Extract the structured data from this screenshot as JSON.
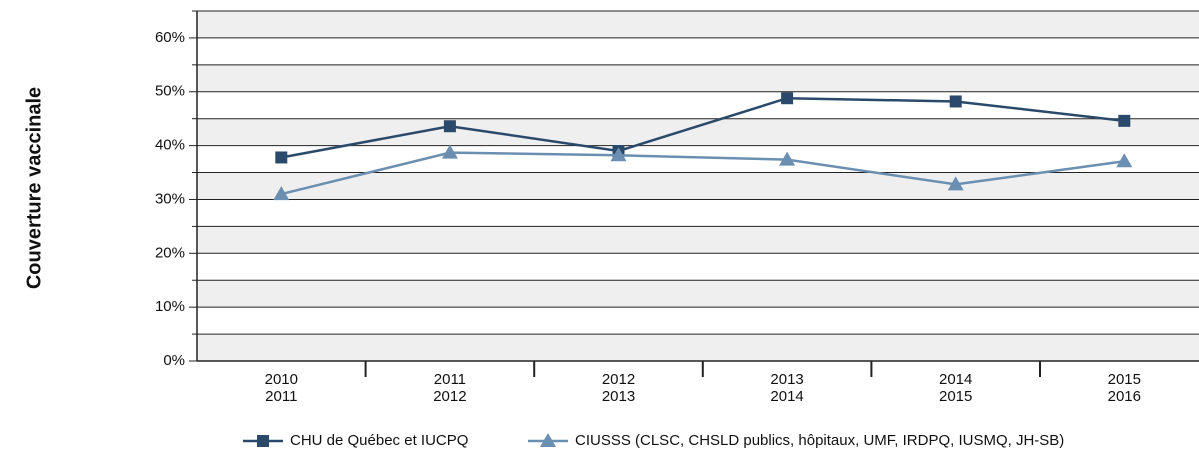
{
  "chart_data": {
    "type": "line",
    "y_label": "Couverture vaccinale",
    "categories": [
      [
        "2010",
        "2011"
      ],
      [
        "2011",
        "2012"
      ],
      [
        "2012",
        "2013"
      ],
      [
        "2013",
        "2014"
      ],
      [
        "2014",
        "2015"
      ],
      [
        "2015",
        "2016"
      ]
    ],
    "series": [
      {
        "name": "CHU de Québec et IUCPQ",
        "color": "#2b4a6b",
        "marker": "square",
        "values": [
          37.8,
          43.6,
          39.0,
          48.8,
          48.2,
          44.6
        ]
      },
      {
        "name": "CIUSSS (CLSC, CHSLD publics, hôpitaux, UMF, IRDPQ, IUSMQ, JH-SB)",
        "color": "#6a8fb0",
        "marker": "triangle",
        "values": [
          31.0,
          38.7,
          38.2,
          37.4,
          32.8,
          37.1
        ]
      }
    ],
    "ylim": [
      0,
      65
    ],
    "yticks": [
      {
        "value": 0,
        "label": "0%"
      },
      {
        "value": 10,
        "label": "10%"
      },
      {
        "value": 20,
        "label": "20%"
      },
      {
        "value": 30,
        "label": "30%"
      },
      {
        "value": 40,
        "label": "40%"
      },
      {
        "value": 50,
        "label": "50%"
      },
      {
        "value": 60,
        "label": "60%"
      }
    ],
    "yticks_minor": [
      5,
      15,
      25,
      35,
      45,
      55,
      65
    ],
    "grid": true
  }
}
